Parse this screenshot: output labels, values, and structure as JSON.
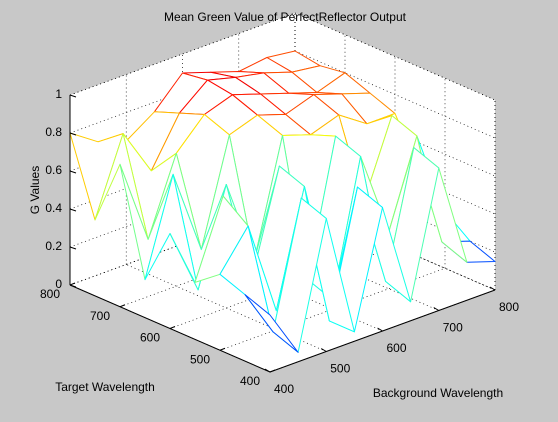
{
  "chart_data": {
    "type": "mesh",
    "title": "Mean Green Value of PerfectReflector Output",
    "xlabel": "Background Wavelength",
    "ylabel": "Target Wavelength",
    "zlabel": "G Values",
    "x": [
      400,
      450,
      500,
      550,
      600,
      650,
      700,
      750,
      800
    ],
    "y": [
      400,
      450,
      500,
      550,
      600,
      650,
      700,
      750,
      800
    ],
    "z": [
      [
        0.3,
        0.05,
        0.7,
        0.05,
        0.65,
        0.1,
        0.75,
        0.2,
        0.15
      ],
      [
        0.35,
        0.1,
        0.75,
        0.05,
        0.7,
        0.15,
        0.8,
        0.25,
        0.2
      ],
      [
        0.4,
        0.6,
        0.1,
        0.7,
        0.05,
        0.75,
        0.3,
        0.75,
        0.3
      ],
      [
        0.3,
        0.7,
        0.2,
        0.75,
        0.1,
        0.8,
        0.4,
        0.8,
        0.45
      ],
      [
        0.5,
        0.15,
        0.65,
        0.2,
        0.8,
        0.75,
        0.8,
        0.7,
        0.7
      ],
      [
        0.2,
        0.7,
        0.25,
        0.8,
        0.85,
        0.8,
        0.85,
        0.8,
        0.75
      ],
      [
        0.75,
        0.3,
        0.7,
        0.85,
        0.9,
        0.85,
        0.8,
        0.75,
        0.8
      ],
      [
        0.4,
        0.8,
        0.55,
        0.8,
        0.92,
        0.88,
        0.85,
        0.8,
        0.78
      ],
      [
        0.8,
        0.7,
        0.65,
        0.75,
        0.9,
        0.85,
        0.8,
        0.82,
        0.8
      ]
    ],
    "xlim": [
      400,
      800
    ],
    "ylim": [
      400,
      800
    ],
    "zlim": [
      0,
      1
    ],
    "xticks": [
      400,
      500,
      600,
      700,
      800
    ],
    "yticks": [
      400,
      500,
      600,
      700,
      800
    ],
    "zticks": [
      0,
      0.2,
      0.4,
      0.6,
      0.8,
      1
    ],
    "grid": true
  }
}
